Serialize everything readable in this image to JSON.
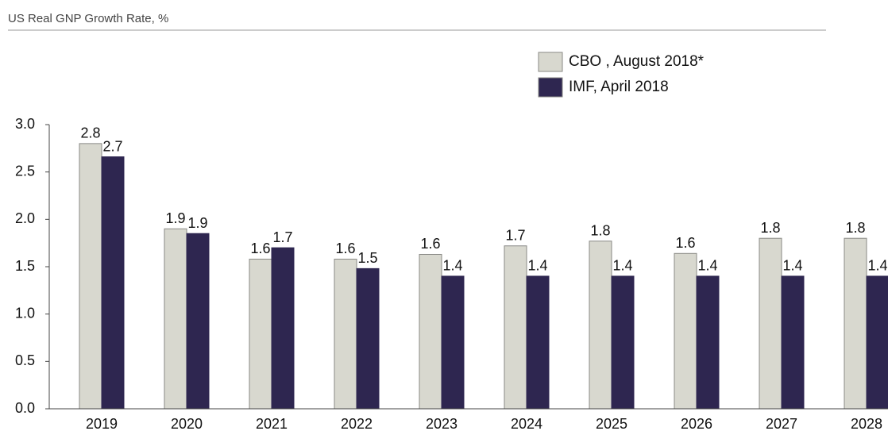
{
  "chart_data": {
    "type": "bar",
    "title": "US Real GNP Growth Rate, %",
    "categories": [
      "2019",
      "2020",
      "2021",
      "2022",
      "2023",
      "2024",
      "2025",
      "2026",
      "2027",
      "2028"
    ],
    "series": [
      {
        "name": "CBO , August 2018*",
        "color": "#d8d8cf",
        "values": [
          2.8,
          1.9,
          1.58,
          1.58,
          1.63,
          1.72,
          1.77,
          1.64,
          1.8,
          1.8
        ],
        "value_labels": [
          "2.8",
          "1.9",
          "1.6",
          "1.6",
          "1.6",
          "1.7",
          "1.8",
          "1.6",
          "1.8",
          "1.8"
        ]
      },
      {
        "name": "IMF, April 2018",
        "color": "#2e2650",
        "values": [
          2.66,
          1.85,
          1.7,
          1.48,
          1.4,
          1.4,
          1.4,
          1.4,
          1.4,
          1.4
        ],
        "value_labels": [
          "2.7",
          "1.9",
          "1.7",
          "1.5",
          "1.4",
          "1.4",
          "1.4",
          "1.4",
          "1.4",
          "1.4"
        ]
      }
    ],
    "ylim": [
      0,
      3
    ],
    "yticks": [
      {
        "value": 0,
        "label": "0.0"
      },
      0.5,
      {
        "value": 1,
        "label": "1.0"
      },
      1.5,
      {
        "value": 2,
        "label": "2.0"
      },
      2.5,
      {
        "value": 3,
        "label": "3.0"
      }
    ],
    "grid": false,
    "legend": "top-right"
  }
}
